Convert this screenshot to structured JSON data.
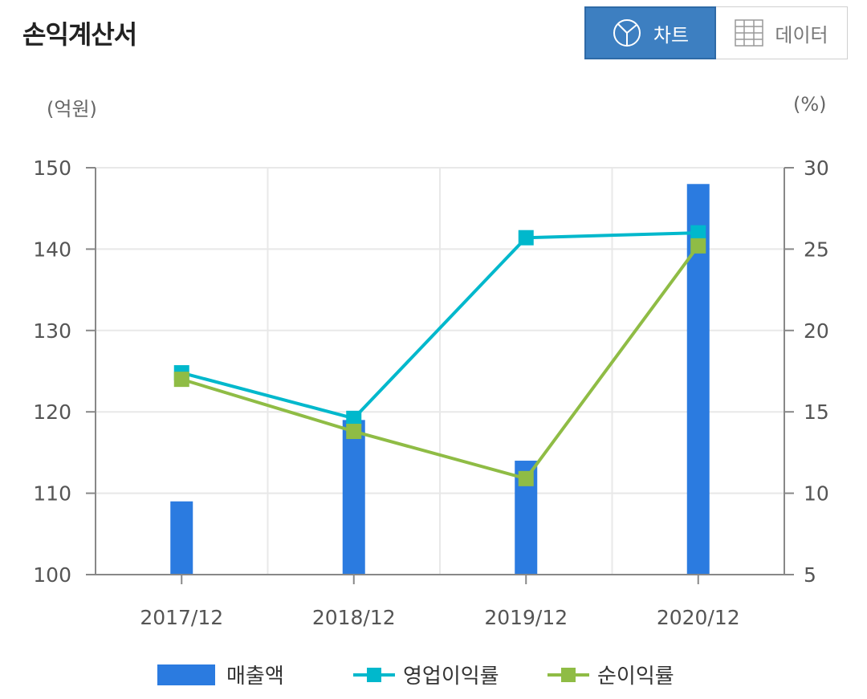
{
  "header": {
    "title": "손익계산서",
    "chart_button_label": "차트",
    "data_button_label": "데이터"
  },
  "icons": {
    "chart_icon": "pie-chart-icon",
    "data_icon": "table-grid-icon"
  },
  "colors": {
    "bar": "#2b7be0",
    "operating_margin": "#00b8cc",
    "net_margin": "#8fbc45",
    "toggle_active": "#3d7fc1"
  },
  "chart_data": {
    "type": "bar",
    "title": "",
    "categories": [
      "2017/12",
      "2018/12",
      "2019/12",
      "2020/12"
    ],
    "left_axis": {
      "unit": "(억원)",
      "ylim": [
        100,
        150
      ],
      "ticks": [
        100,
        110,
        120,
        130,
        140,
        150
      ]
    },
    "right_axis": {
      "unit": "(%)",
      "ylim": [
        5,
        30
      ],
      "ticks": [
        5,
        10,
        15,
        20,
        25,
        30
      ]
    },
    "series": [
      {
        "name": "매출액",
        "type": "bar",
        "axis": "left",
        "values": [
          109,
          119,
          114,
          148
        ]
      },
      {
        "name": "영업이익률",
        "type": "line",
        "axis": "right",
        "values": [
          17.4,
          14.6,
          25.7,
          26.0
        ]
      },
      {
        "name": "순이익률",
        "type": "line",
        "axis": "right",
        "values": [
          17.0,
          13.8,
          10.9,
          25.2
        ]
      }
    ],
    "grid": true,
    "legend_position": "bottom"
  }
}
